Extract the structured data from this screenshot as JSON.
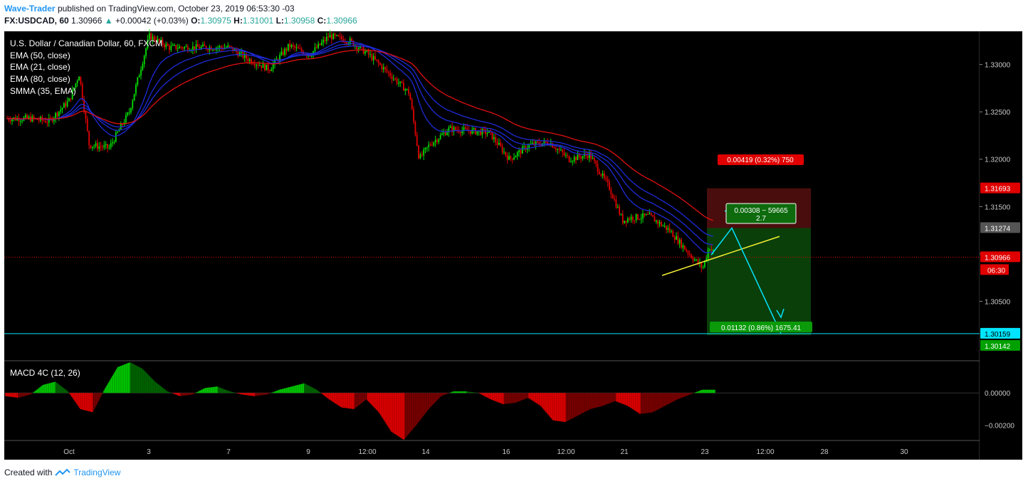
{
  "header": {
    "author": "Wave-Trader",
    "published": "published on TradingView.com, October 23, 2019 06:53:30 -03",
    "symbol": "FX:USDCAD, 60",
    "last": "1.30966",
    "arrow": "▲",
    "change": "+0.00042 (+0.03%)",
    "o_label": "O:",
    "o_val": "1.30975",
    "h_label": "H:",
    "h_val": "1.31001",
    "l_label": "L:",
    "l_val": "1.30958",
    "c_label": "C:",
    "c_val": "1.30966"
  },
  "legend": [
    "U.S. Dollar / Canadian Dollar, 60, FXCM",
    "EMA (50, close)",
    "EMA (21, close)",
    "EMA (80, close)",
    "SMMA (35, EMA)"
  ],
  "macd_label": "MACD 4C (12, 26)",
  "footer": {
    "created_with": "Created with",
    "brand": "TradingView"
  },
  "colors": {
    "background": "#000000",
    "bull": "#00e000",
    "bear": "#e00000",
    "ema_blue": "#1e2bd8",
    "ema_red": "#e01010",
    "cyan": "#00e5ff",
    "trendline": "#f5f032",
    "risk_zone": "#4a0d0d",
    "reward_zone": "#0a3f0a",
    "axis_text": "#c8c8c8"
  },
  "chart_data": {
    "type": "candlestick",
    "title": "U.S. Dollar / Canadian Dollar, 60, FXCM",
    "y_ticks": [
      "1.33000",
      "1.32500",
      "1.32000",
      "1.31500",
      "1.31000",
      "1.30500"
    ],
    "x_ticks": [
      "Oct",
      "3",
      "7",
      "9",
      "12:00",
      "14",
      "16",
      "12:00",
      "21",
      "23",
      "12:00",
      "28",
      "30"
    ],
    "ylim": [
      1.2988,
      1.3335
    ],
    "price_path": [
      [
        "Sep 30 00:00",
        1.3243
      ],
      [
        "Sep 30 12:00",
        1.324
      ],
      [
        "Oct 1 00:00",
        1.3262
      ],
      [
        "Oct 1 06:00",
        1.329
      ],
      [
        "Oct 1 12:00",
        1.3215
      ],
      [
        "Oct 2 00:00",
        1.3212
      ],
      [
        "Oct 2 12:00",
        1.325
      ],
      [
        "Oct 3 00:00",
        1.333
      ],
      [
        "Oct 3 12:00",
        1.3318
      ],
      [
        "Oct 7 00:00",
        1.3318
      ],
      [
        "Oct 7 12:00",
        1.3305
      ],
      [
        "Oct 8 00:00",
        1.3295
      ],
      [
        "Oct 8 12:00",
        1.332
      ],
      [
        "Oct 9 00:00",
        1.331
      ],
      [
        "Oct 9 12:00",
        1.333
      ],
      [
        "Oct 10 00:00",
        1.3325
      ],
      [
        "Oct 10 12:00",
        1.331
      ],
      [
        "Oct 11 00:00",
        1.329
      ],
      [
        "Oct 11 12:00",
        1.327
      ],
      [
        "Oct 11 18:00",
        1.32
      ],
      [
        "Oct 14 00:00",
        1.3215
      ],
      [
        "Oct 14 12:00",
        1.3232
      ],
      [
        "Oct 15 00:00",
        1.323
      ],
      [
        "Oct 15 12:00",
        1.3228
      ],
      [
        "Oct 16 00:00",
        1.32
      ],
      [
        "Oct 16 12:00",
        1.3215
      ],
      [
        "Oct 17 00:00",
        1.3218
      ],
      [
        "Oct 17 12:00",
        1.32
      ],
      [
        "Oct 18 00:00",
        1.3205
      ],
      [
        "Oct 18 12:00",
        1.317
      ],
      [
        "Oct 18 20:00",
        1.3135
      ],
      [
        "Oct 21 00:00",
        1.3138
      ],
      [
        "Oct 21 12:00",
        1.314
      ],
      [
        "Oct 22 00:00",
        1.3125
      ],
      [
        "Oct 22 12:00",
        1.31
      ],
      [
        "Oct 22 20:00",
        1.3085
      ],
      [
        "Oct 23 00:00",
        1.3108
      ],
      [
        "Oct 23 06:00",
        1.3093
      ],
      [
        "Oct 23 12:00",
        1.3105
      ],
      [
        "Oct 23 18:00",
        1.3097
      ]
    ],
    "series": [
      {
        "name": "EMA (50, close)"
      },
      {
        "name": "EMA (21, close)"
      },
      {
        "name": "EMA (80, close)"
      },
      {
        "name": "SMMA (35, EMA)"
      }
    ],
    "price_labels": [
      {
        "text": "1.31693",
        "color": "#e00000",
        "value": 1.31693
      },
      {
        "text": "1.31274",
        "color": "#555555",
        "value": 1.31274
      },
      {
        "text": "1.30966",
        "color": "#e00000",
        "value": 1.30966
      },
      {
        "text": "06:30",
        "color": "#e00000"
      },
      {
        "text": "1.30159",
        "color": "#00e5ff",
        "value": 1.30159
      },
      {
        "text": "1.30142",
        "color": "#00a000",
        "value": 1.30142
      }
    ],
    "position": {
      "entry": 1.31274,
      "stop": 1.31693,
      "target": 1.30142,
      "risk_label": "0.00419 (0.32%) 750",
      "reward_label": "0.01132 (0.86%) 1675.41",
      "ratio_label_1": "0.00308 ~ 59665",
      "ratio_label_2": "2.7"
    },
    "horizontal_line": 1.30159,
    "macd": {
      "ticks": [
        "0.00000",
        "−0.00200"
      ],
      "ylim": [
        -0.0029,
        0.00195
      ],
      "values": [
        -0.0002,
        -0.0003,
        -0.0001,
        0.0005,
        0.0007,
        0.0001,
        -0.001,
        -0.0012,
        0.0003,
        0.0016,
        0.0019,
        0.0015,
        0.0007,
        0.0001,
        -0.0002,
        -0.0001,
        0.0003,
        0.0004,
        0.0001,
        -0.0001,
        -0.0002,
        -0.0001,
        0.0002,
        0.0004,
        0.0006,
        0.0002,
        -0.0004,
        -0.0009,
        -0.001,
        -0.0004,
        -0.0012,
        -0.0024,
        -0.0029,
        -0.002,
        -0.001,
        -0.0002,
        0.0001,
        0.0001,
        0.0,
        -0.0004,
        -0.0007,
        -0.0006,
        -0.0003,
        -0.0008,
        -0.0017,
        -0.0018,
        -0.0014,
        -0.001,
        -0.0008,
        -0.0005,
        -0.0008,
        -0.0013,
        -0.0012,
        -0.0008,
        -0.0004,
        -0.0001,
        0.0002,
        0.0002
      ]
    }
  }
}
